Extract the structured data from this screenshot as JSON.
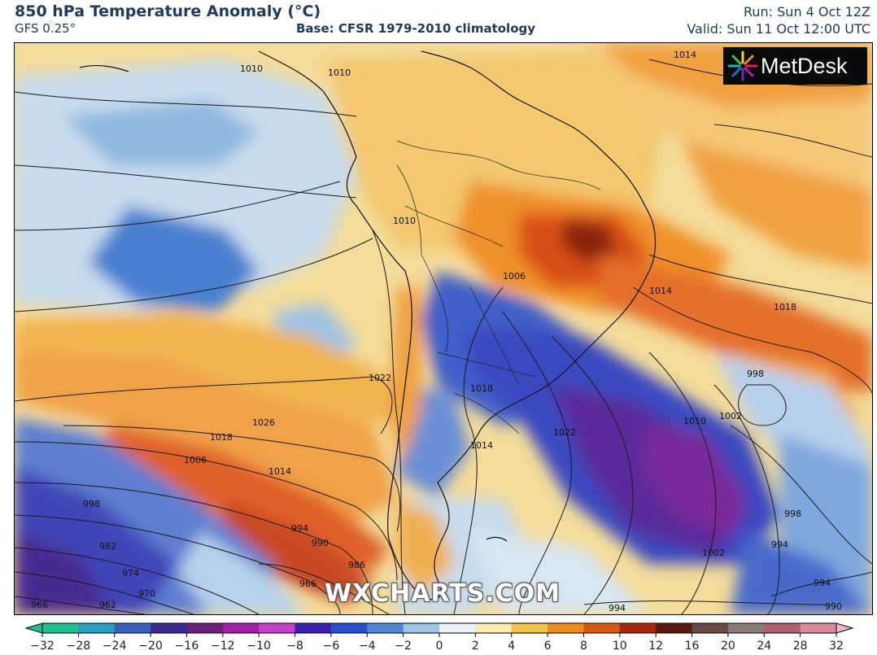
{
  "header": {
    "title": "850 hPa Temperature Anomaly (°C)",
    "model": "GFS 0.25°",
    "base": "Base: CFSR 1979-2010 climatology",
    "run": "Run: Sun 4 Oct 12Z",
    "valid": "Valid: Sun 11 Oct 12:00 UTC"
  },
  "logo": {
    "text": "MetDesk",
    "icon": "metdesk-starburst-icon"
  },
  "watermark": "WXCHARTS.COM",
  "map": {
    "region": "South America and surrounding oceans",
    "pressure_labels": [
      "1010",
      "1010",
      "1014",
      "1010",
      "1006",
      "1014",
      "1018",
      "998",
      "1002",
      "1010",
      "1022",
      "1018",
      "1014",
      "1022",
      "1026",
      "1018",
      "1006",
      "1014",
      "998",
      "982",
      "974",
      "970",
      "962",
      "966",
      "994",
      "990",
      "986",
      "966",
      "994",
      "998",
      "994",
      "1002",
      "994",
      "990"
    ]
  },
  "colorbar": {
    "ticks": [
      "−32",
      "−28",
      "−24",
      "−20",
      "−16",
      "−12",
      "−10",
      "−8",
      "−6",
      "−4",
      "−2",
      "0",
      "2",
      "4",
      "6",
      "8",
      "10",
      "12",
      "16",
      "20",
      "24",
      "28",
      "32"
    ],
    "colors": [
      "#1fbf8f",
      "#2a9ec4",
      "#3c5fbf",
      "#3b2a8f",
      "#6a1f7a",
      "#a51fa5",
      "#c93fc9",
      "#3a1fb0",
      "#2a4fcc",
      "#4f86d6",
      "#9fc4e6",
      "#e8f2f8",
      "#f8edb0",
      "#f5c24a",
      "#f08a1c",
      "#d85a12",
      "#a8280c",
      "#5a1a10",
      "#6a4a44",
      "#8a7a78",
      "#b06070",
      "#d88a9a",
      "#f0b8c8"
    ]
  }
}
